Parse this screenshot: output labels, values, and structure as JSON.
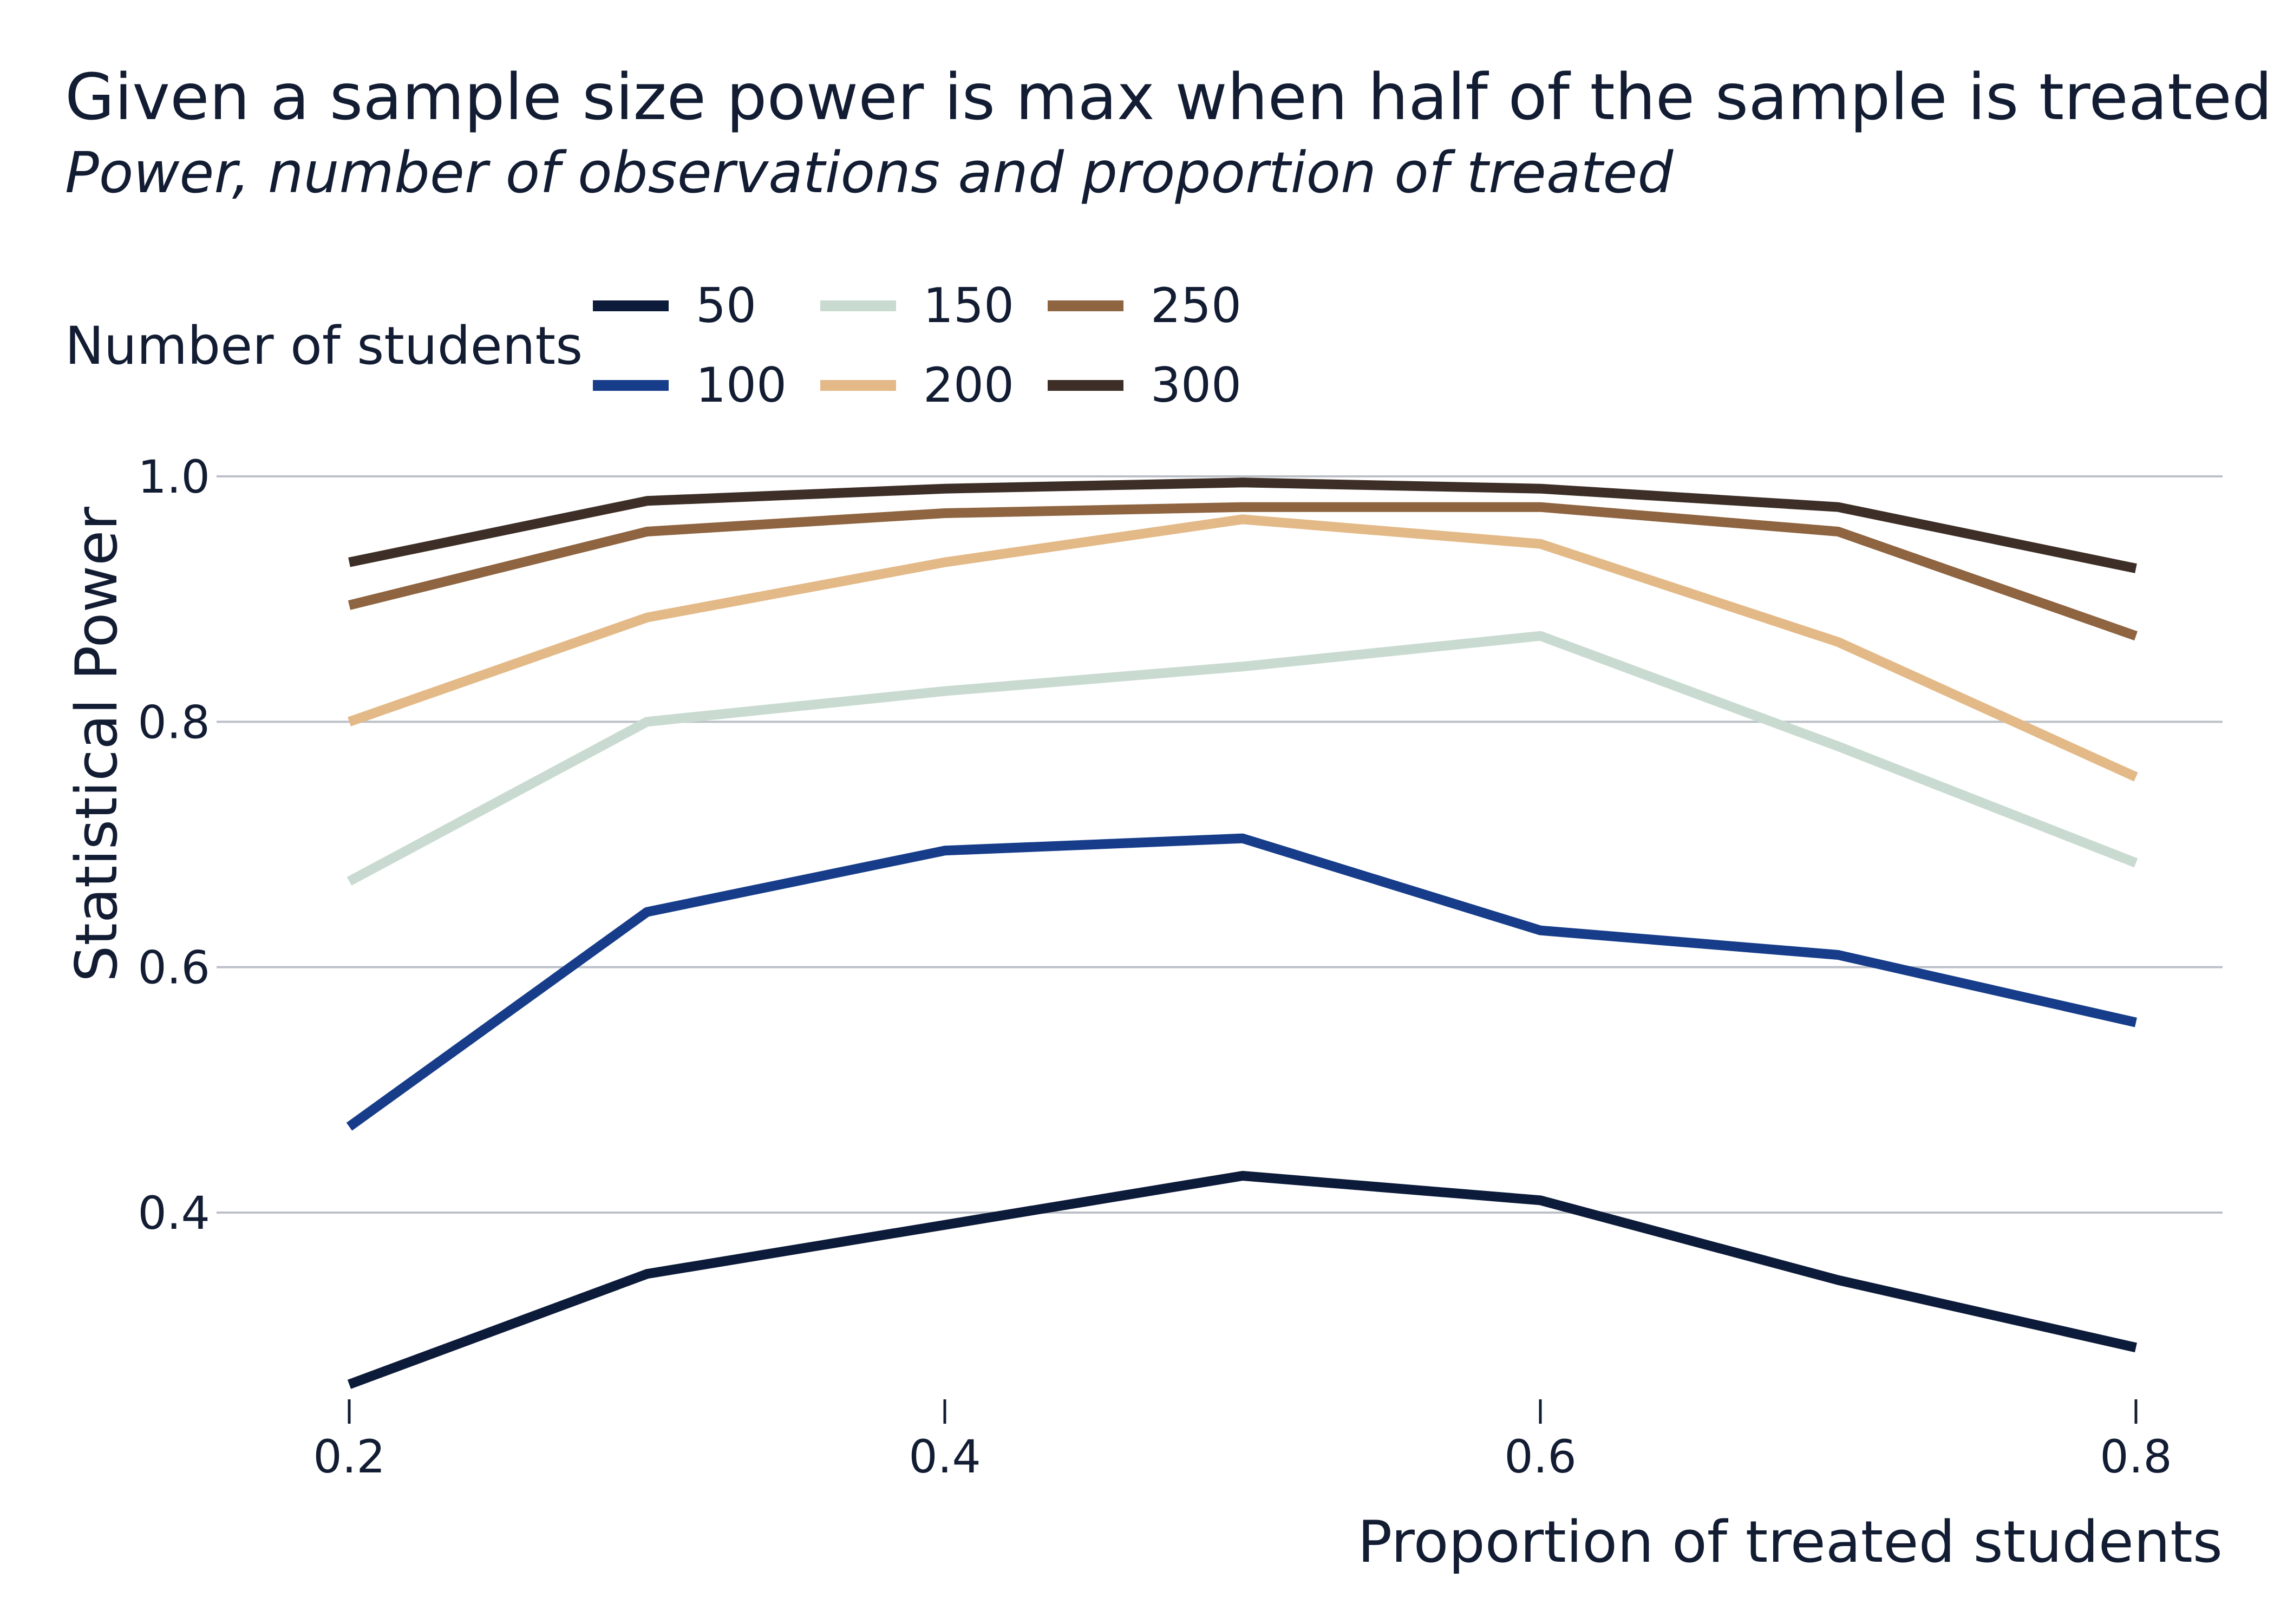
{
  "chart_data": {
    "type": "line",
    "title": "Given a sample size power is max when half of the sample is treated",
    "subtitle": "Power, number of observations and proportion of treated",
    "xlabel": "Proportion of treated students",
    "ylabel": "Statistical Power",
    "xlim": [
      0.2,
      0.8
    ],
    "ylim": [
      0.25,
      1.0
    ],
    "xticks": [
      0.2,
      0.4,
      0.6,
      0.8
    ],
    "xtick_labels": [
      "0.2",
      "0.4",
      "0.6",
      "0.8"
    ],
    "yticks": [
      0.4,
      0.6,
      0.8,
      1.0
    ],
    "ytick_labels": [
      "0.4",
      "0.6",
      "0.8",
      "1.0"
    ],
    "grid": true,
    "legend": {
      "title": "Number of students",
      "placement": "top-left",
      "columns": 3
    },
    "x": [
      0.2,
      0.3,
      0.4,
      0.5,
      0.6,
      0.7,
      0.8
    ],
    "series": [
      {
        "name": "50",
        "color": "#0d1b3a",
        "values": [
          0.26,
          0.35,
          0.39,
          0.43,
          0.41,
          0.345,
          0.29
        ]
      },
      {
        "name": "100",
        "color": "#173d8a",
        "values": [
          0.47,
          0.645,
          0.695,
          0.705,
          0.63,
          0.61,
          0.555
        ]
      },
      {
        "name": "150",
        "color": "#c9dbd0",
        "values": [
          0.67,
          0.8,
          0.825,
          0.845,
          0.87,
          0.78,
          0.685
        ]
      },
      {
        "name": "200",
        "color": "#e3b987",
        "values": [
          0.8,
          0.885,
          0.93,
          0.965,
          0.945,
          0.865,
          0.755
        ]
      },
      {
        "name": "250",
        "color": "#8e6441",
        "values": [
          0.895,
          0.955,
          0.97,
          0.975,
          0.975,
          0.955,
          0.87
        ]
      },
      {
        "name": "300",
        "color": "#3d2f27",
        "values": [
          0.93,
          0.98,
          0.99,
          0.995,
          0.99,
          0.975,
          0.925
        ]
      }
    ]
  }
}
